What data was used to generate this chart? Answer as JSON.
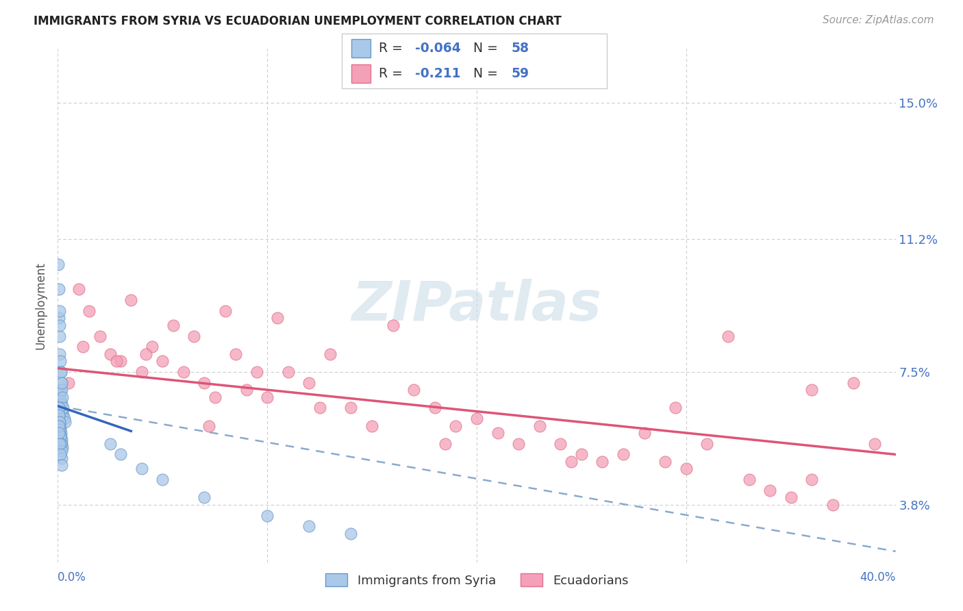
{
  "title": "IMMIGRANTS FROM SYRIA VS ECUADORIAN UNEMPLOYMENT CORRELATION CHART",
  "source": "Source: ZipAtlas.com",
  "ylabel": "Unemployment",
  "yticks": [
    3.8,
    7.5,
    11.2,
    15.0
  ],
  "ytick_labels": [
    "3.8%",
    "7.5%",
    "11.2%",
    "15.0%"
  ],
  "xmin": 0.0,
  "xmax": 40.0,
  "ymin": 2.2,
  "ymax": 16.5,
  "series1_label": "Immigrants from Syria",
  "series2_label": "Ecuadorians",
  "series1_R": "-0.064",
  "series1_N": "58",
  "series2_R": "-0.211",
  "series2_N": "59",
  "series1_color": "#aac8e8",
  "series2_color": "#f4a0b8",
  "series1_edge": "#6699cc",
  "series2_edge": "#e0708a",
  "line1_solid_color": "#3366bb",
  "line2_solid_color": "#dd5577",
  "line1_dash_color": "#88aacc",
  "background": "#ffffff",
  "grid_color": "#cccccc",
  "watermark_color": "#ccdde8",
  "title_color": "#222222",
  "source_color": "#999999",
  "axis_label_color": "#4472c4",
  "ylabel_color": "#555555",
  "legend_edge": "#cccccc",
  "syria_x": [
    0.05,
    0.08,
    0.1,
    0.12,
    0.13,
    0.15,
    0.18,
    0.2,
    0.22,
    0.25,
    0.3,
    0.35,
    0.05,
    0.07,
    0.1,
    0.12,
    0.15,
    0.18,
    0.2,
    0.22,
    0.25,
    0.04,
    0.06,
    0.08,
    0.1,
    0.12,
    0.14,
    0.16,
    0.18,
    0.2,
    0.22,
    0.05,
    0.06,
    0.08,
    0.1,
    0.12,
    0.15,
    0.18,
    0.2,
    0.03,
    0.05,
    0.07,
    0.1,
    0.15,
    0.2,
    0.05,
    0.06,
    0.08,
    0.12,
    0.18,
    2.5,
    3.0,
    4.0,
    5.0,
    7.0,
    10.0,
    12.0,
    14.0
  ],
  "syria_y": [
    6.5,
    6.3,
    6.8,
    7.0,
    6.9,
    6.7,
    6.5,
    6.6,
    6.4,
    6.3,
    6.2,
    6.1,
    9.0,
    8.5,
    8.0,
    7.8,
    7.5,
    7.2,
    7.0,
    6.8,
    6.5,
    6.5,
    6.3,
    6.1,
    6.0,
    5.9,
    5.8,
    5.7,
    5.6,
    5.5,
    5.4,
    6.5,
    6.3,
    6.1,
    5.9,
    5.7,
    5.5,
    5.3,
    5.1,
    10.5,
    9.8,
    9.2,
    8.8,
    7.5,
    7.2,
    6.0,
    5.8,
    5.5,
    5.2,
    4.9,
    5.5,
    5.2,
    4.8,
    4.5,
    4.0,
    3.5,
    3.2,
    3.0
  ],
  "ecuador_x": [
    0.5,
    1.0,
    1.5,
    2.0,
    2.5,
    3.0,
    3.5,
    4.0,
    4.5,
    5.0,
    5.5,
    6.0,
    6.5,
    7.0,
    7.5,
    8.0,
    8.5,
    9.0,
    9.5,
    10.0,
    10.5,
    11.0,
    12.0,
    13.0,
    14.0,
    15.0,
    16.0,
    17.0,
    18.0,
    19.0,
    20.0,
    21.0,
    22.0,
    23.0,
    24.0,
    25.0,
    26.0,
    27.0,
    28.0,
    29.0,
    30.0,
    31.0,
    32.0,
    33.0,
    34.0,
    35.0,
    36.0,
    37.0,
    38.0,
    39.0,
    1.2,
    2.8,
    4.2,
    7.2,
    12.5,
    18.5,
    24.5,
    29.5,
    36.0
  ],
  "ecuador_y": [
    7.2,
    9.8,
    9.2,
    8.5,
    8.0,
    7.8,
    9.5,
    7.5,
    8.2,
    7.8,
    8.8,
    7.5,
    8.5,
    7.2,
    6.8,
    9.2,
    8.0,
    7.0,
    7.5,
    6.8,
    9.0,
    7.5,
    7.2,
    8.0,
    6.5,
    6.0,
    8.8,
    7.0,
    6.5,
    6.0,
    6.2,
    5.8,
    5.5,
    6.0,
    5.5,
    5.2,
    5.0,
    5.2,
    5.8,
    5.0,
    4.8,
    5.5,
    8.5,
    4.5,
    4.2,
    4.0,
    4.5,
    3.8,
    7.2,
    5.5,
    8.2,
    7.8,
    8.0,
    6.0,
    6.5,
    5.5,
    5.0,
    6.5,
    7.0
  ],
  "line1_x0": 0.0,
  "line1_x1": 3.5,
  "line1_y0": 6.55,
  "line1_y1": 5.85,
  "line1_dash_x0": 0.0,
  "line1_dash_x1": 40.0,
  "line1_dash_y0": 6.55,
  "line1_dash_y1": 2.5,
  "line2_x0": 0.0,
  "line2_x1": 40.0,
  "line2_y0": 7.6,
  "line2_y1": 5.2
}
